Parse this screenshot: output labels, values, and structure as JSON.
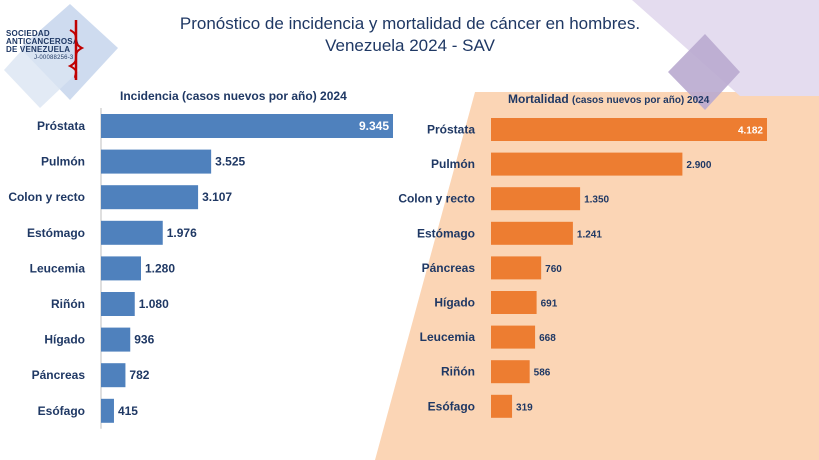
{
  "title_line1": "Pronóstico de incidencia y mortalidad de cáncer en hombres.",
  "title_line2": "Venezuela 2024 - SAV",
  "logo": {
    "line1": "SOCIEDAD",
    "line2": "ANTICANCEROSA",
    "line3": "DE VENEZUELA",
    "line4": "J-00088256-3"
  },
  "colors": {
    "incidence_bar": "#4f81bd",
    "mortality_bar": "#ed7d31",
    "mortality_panel": "#fbd5b5",
    "title": "#1f3864",
    "deco_blue": "#b4c7e7",
    "deco_purple": "#b2a1c7"
  },
  "chart_data": [
    {
      "type": "bar",
      "orientation": "horizontal",
      "title": "Incidencia (casos nuevos por año) 2024",
      "categories": [
        "Próstata",
        "Pulmón",
        "Colon y recto",
        "Estómago",
        "Leucemia",
        "Riñón",
        "Hígado",
        "Páncreas",
        "Esófago"
      ],
      "values": [
        9345,
        3525,
        3107,
        1976,
        1280,
        1080,
        936,
        782,
        415
      ],
      "value_labels": [
        "9.345",
        "3.525",
        "3.107",
        "1.976",
        "1.280",
        "1.080",
        "936",
        "782",
        "415"
      ],
      "xlim": [
        0,
        9345
      ],
      "grid": false
    },
    {
      "type": "bar",
      "orientation": "horizontal",
      "title_main": "Mortalidad",
      "title_rest": "(casos nuevos por año) 2024",
      "categories": [
        "Próstata",
        "Pulmón",
        "Colon y recto",
        "Estómago",
        "Páncreas",
        "Hígado",
        "Leucemia",
        "Riñón",
        "Esófago"
      ],
      "values": [
        4182,
        2900,
        1350,
        1241,
        760,
        691,
        668,
        586,
        319
      ],
      "value_labels": [
        "4.182",
        "2.900",
        "1.350",
        "1.241",
        "760",
        "691",
        "668",
        "586",
        "319"
      ],
      "xlim": [
        0,
        4182
      ],
      "grid": false
    }
  ]
}
